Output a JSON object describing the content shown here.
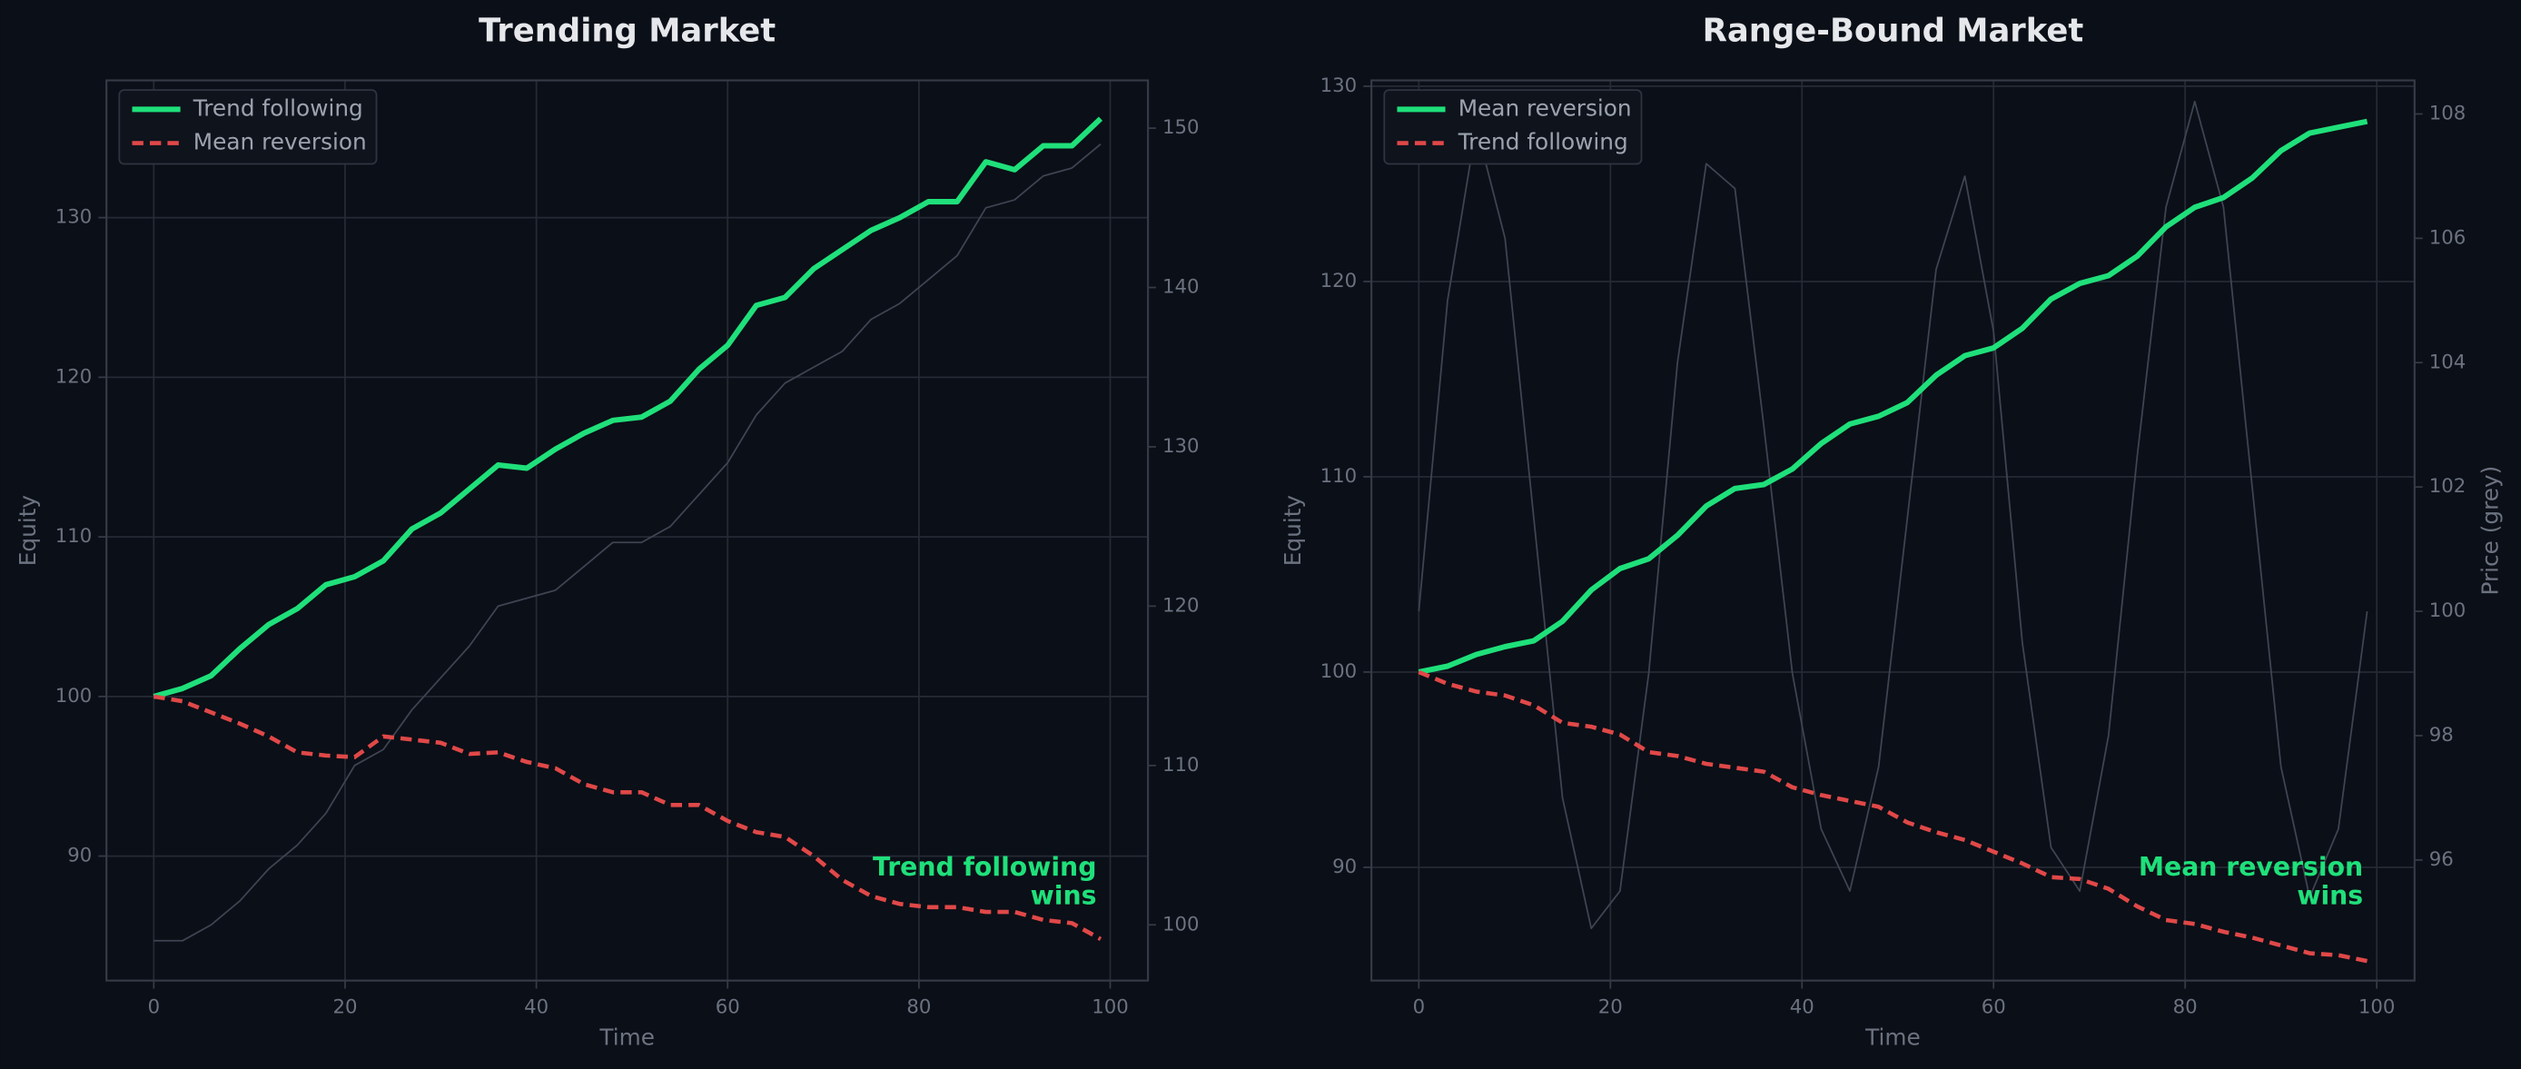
{
  "chart_data": [
    {
      "type": "line",
      "title": "Trending Market",
      "xlabel": "Time",
      "ylabel": "Equity",
      "x": [
        0,
        3,
        6,
        9,
        12,
        15,
        18,
        21,
        24,
        27,
        30,
        33,
        36,
        39,
        42,
        45,
        48,
        51,
        54,
        57,
        60,
        63,
        66,
        69,
        72,
        75,
        78,
        81,
        84,
        87,
        90,
        93,
        96,
        99
      ],
      "series": [
        {
          "name": "Trend following",
          "color": "#1fe07a",
          "dash": false,
          "values": [
            100,
            100.5,
            101.3,
            103,
            104.5,
            105.5,
            107,
            107.5,
            108.5,
            110.5,
            111.5,
            113,
            114.5,
            114.3,
            115.5,
            116.5,
            117.3,
            117.5,
            118.5,
            120.5,
            122,
            124.5,
            125,
            126.8,
            128,
            129.2,
            130,
            131,
            131,
            133.5,
            133,
            134.5,
            134.5,
            136.2
          ]
        },
        {
          "name": "Mean reversion",
          "color": "#e04848",
          "dash": true,
          "values": [
            100,
            99.7,
            99,
            98.3,
            97.5,
            96.5,
            96.3,
            96.2,
            97.5,
            97.3,
            97.1,
            96.4,
            96.5,
            95.9,
            95.5,
            94.5,
            94,
            94,
            93.2,
            93.2,
            92.2,
            91.5,
            91.2,
            90,
            88.5,
            87.5,
            87,
            86.8,
            86.8,
            86.5,
            86.5,
            86,
            85.8,
            84.8
          ]
        }
      ],
      "price": {
        "axis": "y2",
        "color": "#3e4452",
        "values": [
          99,
          99,
          100,
          101.5,
          103.5,
          105,
          107,
          110,
          111,
          113.5,
          115.5,
          117.5,
          120,
          120.5,
          121,
          122.5,
          124,
          124,
          125,
          127,
          129,
          132,
          134,
          135,
          136,
          138,
          139,
          140.5,
          142,
          145,
          145.5,
          147,
          147.5,
          149
        ]
      },
      "xlim": [
        -4.95,
        103.95
      ],
      "xticks": [
        0,
        20,
        40,
        60,
        80,
        100
      ],
      "ylim": [
        82.2,
        138.6
      ],
      "yticks": [
        90,
        100,
        110,
        120,
        130
      ],
      "y2lim": [
        96.5,
        153
      ],
      "y2ticks": [
        100,
        110,
        120,
        130,
        140,
        150
      ],
      "grid": true,
      "legend": "upper left",
      "annotation": [
        "Trend following",
        "wins"
      ],
      "annotation_color": "#1fe07a"
    },
    {
      "type": "line",
      "title": "Range-Bound Market",
      "xlabel": "Time",
      "ylabel": "Equity",
      "y2label": "Price (grey)",
      "x": [
        0,
        3,
        6,
        9,
        12,
        15,
        18,
        21,
        24,
        27,
        30,
        33,
        36,
        39,
        42,
        45,
        48,
        51,
        54,
        57,
        60,
        63,
        66,
        69,
        72,
        75,
        78,
        81,
        84,
        87,
        90,
        93,
        96,
        99
      ],
      "series": [
        {
          "name": "Mean reversion",
          "color": "#1fe07a",
          "dash": false,
          "values": [
            100,
            100.3,
            100.9,
            101.3,
            101.6,
            102.6,
            104.2,
            105.3,
            105.8,
            107,
            108.5,
            109.4,
            109.6,
            110.4,
            111.7,
            112.7,
            113.1,
            113.8,
            115.2,
            116.2,
            116.6,
            117.6,
            119.1,
            119.9,
            120.3,
            121.3,
            122.8,
            123.8,
            124.3,
            125.3,
            126.7,
            127.6,
            127.9,
            128.2
          ]
        },
        {
          "name": "Trend following",
          "color": "#e04848",
          "dash": true,
          "values": [
            100,
            99.4,
            99,
            98.8,
            98.3,
            97.4,
            97.2,
            96.8,
            95.9,
            95.7,
            95.3,
            95.1,
            94.9,
            94.1,
            93.7,
            93.4,
            93.1,
            92.3,
            91.8,
            91.4,
            90.8,
            90.2,
            89.5,
            89.4,
            88.9,
            88,
            87.3,
            87.1,
            86.7,
            86.4,
            86,
            85.6,
            85.5,
            85.2
          ]
        }
      ],
      "price": {
        "axis": "y2",
        "color": "#3e4452",
        "values": [
          100,
          105,
          107.8,
          106,
          101.5,
          97,
          94.9,
          95.5,
          99,
          104,
          107.2,
          106.8,
          103,
          99,
          96.5,
          95.5,
          97.5,
          101.5,
          105.5,
          107,
          104.5,
          99.5,
          96.2,
          95.5,
          98,
          102.5,
          106.5,
          108.2,
          106.5,
          102,
          97.5,
          95.4,
          96.5,
          100
        ]
      },
      "xlim": [
        -4.95,
        103.95
      ],
      "xticks": [
        0,
        20,
        40,
        60,
        80,
        100
      ],
      "ylim": [
        84.2,
        130.3
      ],
      "yticks": [
        90,
        100,
        110,
        120,
        130
      ],
      "y2lim": [
        94.06,
        108.54
      ],
      "y2ticks": [
        96,
        98,
        100,
        102,
        104,
        106,
        108
      ],
      "grid": true,
      "legend": "upper left",
      "annotation": [
        "Mean reversion",
        "wins"
      ],
      "annotation_color": "#1fe07a"
    }
  ]
}
